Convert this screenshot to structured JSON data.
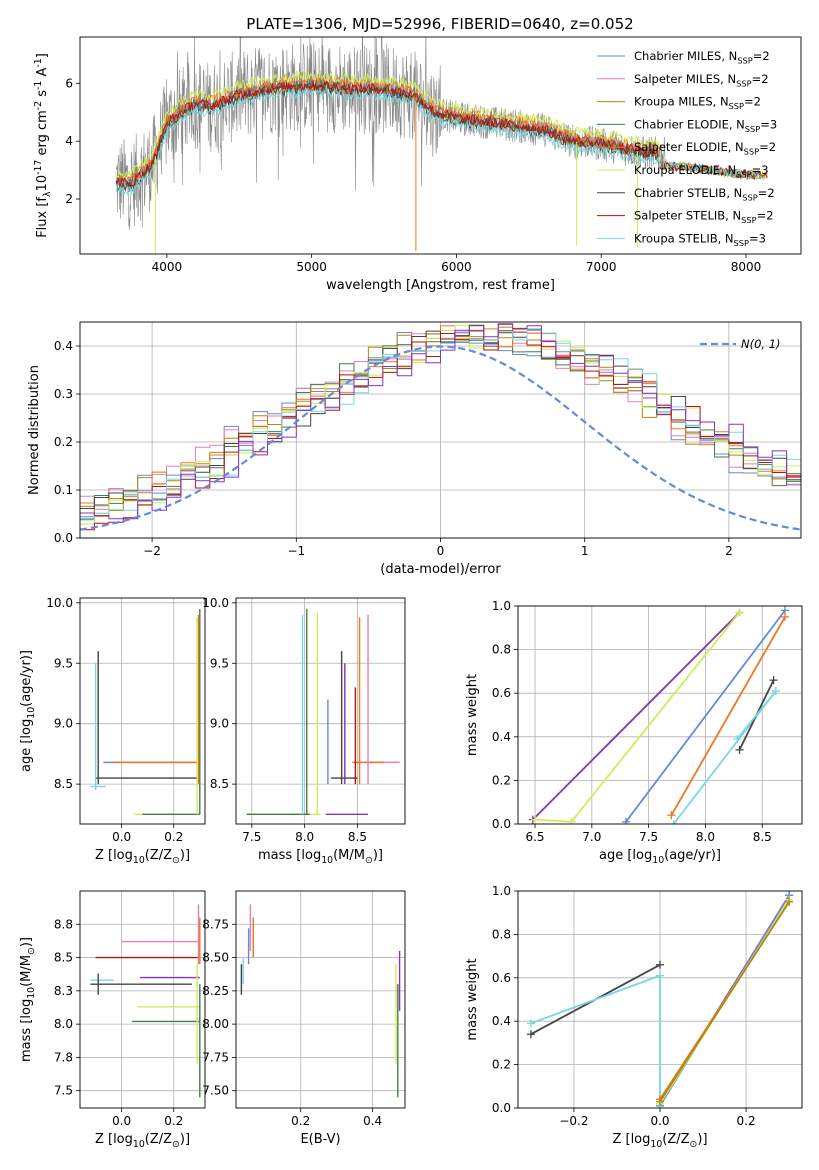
{
  "title": "PLATE=1306, MJD=52996, FIBERID=0640, z=0.052",
  "colors": {
    "Chabrier MILES": "#6688dd",
    "Salpeter MILES": "#e47fbb",
    "Kroupa MILES": "#b8860b",
    "Chabrier ELODIE": "#4a7a4a",
    "Salpeter ELODIE": "#ee7722",
    "Kroupa ELODIE": "#ccee55",
    "Chabrier STELIB": "#444444",
    "Salpeter STELIB": "#bb1111",
    "Kroupa STELIB": "#77d8e0",
    "data": "#888888",
    "extra_purple": "#8833bb",
    "normal": "#6688dd"
  },
  "legend_entries": [
    "Chabrier MILES, N$_{SSP}$=2",
    "Salpeter MILES, N$_{SSP}$=2",
    "Kroupa MILES, N$_{SSP}$=2",
    "Chabrier ELODIE, N$_{SSP}$=3",
    "Salpeter ELODIE, N$_{SSP}$=2",
    "Kroupa ELODIE, N$_{SSP}$=3",
    "Chabrier STELIB, N$_{SSP}$=2",
    "Salpeter STELIB, N$_{SSP}$=2",
    "Kroupa STELIB, N$_{SSP}$=3"
  ],
  "chart_data": [
    {
      "id": "spectrum",
      "type": "line",
      "xlabel": "wavelength [Angstrom, rest frame]",
      "ylabel": "Flux [f$_\\lambda$10$^{-17}$ erg cm$^{-2}$ s$^{-1}$ A$^{-1}$]",
      "xlim": [
        3400,
        8380
      ],
      "ylim": [
        0.1,
        7.6
      ],
      "xticks": [
        4000,
        5000,
        6000,
        7000,
        8000
      ],
      "yticks": [
        2,
        4,
        6
      ],
      "grid": false,
      "legend": "top-right",
      "continuum_x": [
        3650,
        3750,
        3900,
        4000,
        4100,
        4200,
        4300,
        4400,
        4500,
        4700,
        4900,
        5100,
        5300,
        5500,
        5700,
        5850,
        6000,
        6300,
        6600,
        6800,
        7000,
        7300,
        7600,
        7900,
        8150
      ],
      "continuum_y": [
        2.6,
        2.5,
        3.2,
        4.6,
        5.0,
        5.3,
        5.2,
        5.4,
        5.6,
        5.8,
        5.9,
        5.9,
        5.8,
        5.8,
        5.6,
        5.0,
        4.8,
        4.6,
        4.4,
        4.0,
        3.9,
        3.6,
        3.5,
        3.3,
        3.2
      ]
    },
    {
      "id": "residuals",
      "type": "line",
      "xlabel": "(data-model)/error",
      "ylabel": "Normed distribution",
      "xlim": [
        -2.5,
        2.5
      ],
      "ylim": [
        0,
        0.45
      ],
      "xticks": [
        -2,
        -1,
        0,
        1,
        2
      ],
      "yticks": [
        0.0,
        0.1,
        0.2,
        0.3,
        0.4
      ],
      "grid": true,
      "legend": "top-right",
      "legend_label": "$\\mathcal{N}(0,1)$"
    },
    {
      "id": "age-Z",
      "type": "scatter",
      "xlabel": "Z [log$_{10}$($Z/Z_\\odot$)]",
      "ylabel": "age  [log$_{10}$($age/yr$)]",
      "xlim": [
        -0.16,
        0.32
      ],
      "ylim": [
        8.17,
        10.04
      ],
      "xticks": [
        0.0,
        0.2
      ],
      "yticks": [
        8.5,
        9.0,
        9.5,
        10.0
      ],
      "grid": true,
      "hsegs": [
        {
          "model": "Chabrier STELIB",
          "x": [
            -0.1,
            0.3
          ],
          "y": 8.55
        },
        {
          "model": "Kroupa STELIB",
          "x": [
            -0.12,
            -0.06
          ],
          "y": 8.48
        },
        {
          "model": "Chabrier MILES",
          "x": [
            -0.07,
            0.3
          ],
          "y": 8.68
        },
        {
          "model": "Salpeter ELODIE",
          "x": [
            -0.03,
            0.3
          ],
          "y": 8.68
        },
        {
          "model": "Kroupa ELODIE",
          "x": [
            0.05,
            0.3
          ],
          "y": 8.25
        },
        {
          "model": "Chabrier ELODIE",
          "x": [
            0.08,
            0.3
          ],
          "y": 8.25
        }
      ],
      "vsegs": [
        {
          "model": "Chabrier STELIB",
          "x": -0.09,
          "y": [
            8.5,
            9.6
          ]
        },
        {
          "model": "Kroupa STELIB",
          "x": -0.1,
          "y": [
            8.45,
            9.5
          ]
        },
        {
          "model": "Chabrier ELODIE",
          "x": 0.3,
          "y": [
            8.25,
            9.95
          ]
        },
        {
          "model": "Salpeter ELODIE",
          "x": 0.295,
          "y": [
            8.5,
            9.9
          ]
        },
        {
          "model": "Kroupa ELODIE",
          "x": 0.29,
          "y": [
            8.25,
            9.88
          ]
        }
      ]
    },
    {
      "id": "age-mass",
      "type": "scatter",
      "xlabel": "mass [log$_{10}$($M/M_\\odot$)]",
      "ylabel": "",
      "xlim": [
        7.35,
        8.95
      ],
      "ylim": [
        8.17,
        10.04
      ],
      "xticks": [
        7.5,
        8.0,
        8.5
      ],
      "yticks": [
        8.5,
        9.0,
        9.5,
        10.0
      ],
      "grid": true,
      "hsegs": [
        {
          "model": "Kroupa ELODIE",
          "x": [
            7.45,
            8.15
          ],
          "y": 8.25
        },
        {
          "model": "Chabrier ELODIE",
          "x": [
            7.45,
            8.05
          ],
          "y": 8.25
        },
        {
          "model": "extra_purple",
          "x": [
            8.2,
            8.6
          ],
          "y": 8.25
        },
        {
          "model": "Chabrier STELIB",
          "x": [
            8.25,
            8.5
          ],
          "y": 8.55
        },
        {
          "model": "Salpeter MILES",
          "x": [
            8.5,
            8.9
          ],
          "y": 8.68
        },
        {
          "model": "Salpeter ELODIE",
          "x": [
            8.45,
            8.75
          ],
          "y": 8.68
        }
      ],
      "vsegs": [
        {
          "model": "Chabrier ELODIE",
          "x": 8.02,
          "y": [
            8.25,
            9.95
          ]
        },
        {
          "model": "Kroupa ELODIE",
          "x": 8.12,
          "y": [
            8.25,
            9.92
          ]
        },
        {
          "model": "Kroupa STELIB",
          "x": 7.98,
          "y": [
            8.25,
            9.9
          ]
        },
        {
          "model": "Chabrier STELIB",
          "x": 8.35,
          "y": [
            8.5,
            9.6
          ]
        },
        {
          "model": "extra_purple",
          "x": 8.38,
          "y": [
            8.5,
            9.5
          ]
        },
        {
          "model": "Salpeter ELODIE",
          "x": 8.52,
          "y": [
            8.5,
            9.88
          ]
        },
        {
          "model": "Salpeter MILES",
          "x": 8.6,
          "y": [
            8.5,
            9.9
          ]
        },
        {
          "model": "Salpeter STELIB",
          "x": 8.48,
          "y": [
            8.5,
            9.3
          ]
        },
        {
          "model": "Chabrier MILES",
          "x": 8.22,
          "y": [
            8.5,
            9.2
          ]
        }
      ]
    },
    {
      "id": "weight-age",
      "type": "line",
      "xlabel": "age  [log$_{10}$($age/yr$)]",
      "ylabel": "mass weight",
      "xlim": [
        6.35,
        8.85
      ],
      "ylim": [
        0,
        1
      ],
      "xticks": [
        6.5,
        7.0,
        7.5,
        8.0,
        8.5
      ],
      "yticks": [
        0.0,
        0.2,
        0.4,
        0.6,
        0.8,
        1.0
      ],
      "grid": true,
      "series": [
        {
          "model": "extra_purple",
          "x": [
            6.48,
            8.3
          ],
          "y": [
            0.02,
            0.97
          ]
        },
        {
          "model": "Kroupa ELODIE",
          "x": [
            6.5,
            6.82,
            8.3
          ],
          "y": [
            0.02,
            0.01,
            0.97
          ]
        },
        {
          "model": "Chabrier MILES",
          "x": [
            7.3,
            8.7
          ],
          "y": [
            0.01,
            0.98
          ]
        },
        {
          "model": "Salpeter ELODIE",
          "x": [
            7.7,
            8.7
          ],
          "y": [
            0.04,
            0.95
          ]
        },
        {
          "model": "Kroupa STELIB",
          "x": [
            7.72,
            8.62
          ],
          "y": [
            0.0,
            0.61
          ]
        },
        {
          "model": "Chabrier STELIB",
          "x": [
            8.3,
            8.6
          ],
          "y": [
            0.34,
            0.66
          ]
        },
        {
          "model": "Kroupa STELIB",
          "x": [
            8.28,
            8.62
          ],
          "y": [
            0.39,
            0.61
          ]
        }
      ]
    },
    {
      "id": "mass-Z",
      "type": "scatter",
      "xlabel": "Z [log$_{10}$($Z/Z_\\odot$)]",
      "ylabel": "mass [log$_{10}$($M/M_\\odot$)]",
      "xlim": [
        -0.16,
        0.32
      ],
      "ylim": [
        7.37,
        9.0
      ],
      "xticks": [
        0.0,
        0.2
      ],
      "yticks": [
        7.5,
        7.75,
        8.0,
        8.25,
        8.5,
        8.75
      ],
      "grid": true,
      "hsegs": [
        {
          "model": "Salpeter MILES",
          "x": [
            0.0,
            0.3
          ],
          "y": 8.62
        },
        {
          "model": "Salpeter STELIB",
          "x": [
            -0.1,
            0.3
          ],
          "y": 8.5
        },
        {
          "model": "extra_purple",
          "x": [
            0.07,
            0.3
          ],
          "y": 8.35
        },
        {
          "model": "Kroupa STELIB",
          "x": [
            -0.12,
            -0.03
          ],
          "y": 8.33
        },
        {
          "model": "Chabrier STELIB",
          "x": [
            -0.12,
            0.27
          ],
          "y": 8.3
        },
        {
          "model": "Kroupa ELODIE",
          "x": [
            0.06,
            0.3
          ],
          "y": 8.13
        },
        {
          "model": "Chabrier ELODIE",
          "x": [
            0.04,
            0.3
          ],
          "y": 8.02
        }
      ],
      "vsegs": [
        {
          "model": "Chabrier STELIB",
          "x": -0.09,
          "y": [
            8.22,
            8.38
          ]
        },
        {
          "model": "Salpeter MILES",
          "x": 0.295,
          "y": [
            8.45,
            8.9
          ]
        },
        {
          "model": "Salpeter ELODIE",
          "x": 0.3,
          "y": [
            8.45,
            8.8
          ]
        },
        {
          "model": "Kroupa ELODIE",
          "x": 0.29,
          "y": [
            7.7,
            8.45
          ]
        },
        {
          "model": "Chabrier ELODIE",
          "x": 0.3,
          "y": [
            7.45,
            8.3
          ]
        }
      ]
    },
    {
      "id": "mass-EBV",
      "type": "scatter",
      "xlabel": "E(B-V)",
      "ylabel": "",
      "xlim": [
        0.02,
        0.49
      ],
      "ylim": [
        7.37,
        9.0
      ],
      "xticks": [
        0.2,
        0.4
      ],
      "yticks": [
        7.5,
        7.75,
        8.0,
        8.25,
        8.5,
        8.75
      ],
      "grid": true,
      "vsegs": [
        {
          "model": "Chabrier STELIB",
          "x": 0.035,
          "y": [
            8.22,
            8.45
          ]
        },
        {
          "model": "Kroupa STELIB",
          "x": 0.04,
          "y": [
            8.3,
            8.5
          ]
        },
        {
          "model": "Chabrier MILES",
          "x": 0.055,
          "y": [
            8.45,
            8.72
          ]
        },
        {
          "model": "Salpeter MILES",
          "x": 0.06,
          "y": [
            8.55,
            8.9
          ]
        },
        {
          "model": "Salpeter ELODIE",
          "x": 0.068,
          "y": [
            8.5,
            8.8
          ]
        },
        {
          "model": "extra_purple",
          "x": 0.475,
          "y": [
            8.1,
            8.55
          ]
        },
        {
          "model": "Kroupa ELODIE",
          "x": 0.465,
          "y": [
            7.7,
            8.45
          ]
        },
        {
          "model": "Chabrier ELODIE",
          "x": 0.47,
          "y": [
            7.45,
            8.3
          ]
        }
      ]
    },
    {
      "id": "weight-Z",
      "type": "line",
      "xlabel": "Z [log$_{10}$($Z/Z_\\odot$)]",
      "ylabel": "mass weight",
      "xlim": [
        -0.33,
        0.33
      ],
      "ylim": [
        0,
        1
      ],
      "xticks": [
        -0.2,
        0.0,
        0.2
      ],
      "yticks": [
        0.0,
        0.2,
        0.4,
        0.6,
        0.8,
        1.0
      ],
      "grid": true,
      "series": [
        {
          "model": "Chabrier STELIB",
          "x": [
            -0.3,
            0.0
          ],
          "y": [
            0.34,
            0.66
          ]
        },
        {
          "model": "Kroupa STELIB",
          "x": [
            -0.3,
            0.0
          ],
          "y": [
            0.39,
            0.61
          ]
        },
        {
          "model": "Kroupa STELIB",
          "x": [
            0.0,
            0.0
          ],
          "y": [
            0.61,
            0.0
          ]
        },
        {
          "model": "extra_purple",
          "x": [
            0.0,
            0.3
          ],
          "y": [
            0.02,
            0.98
          ]
        },
        {
          "model": "Chabrier MILES",
          "x": [
            0.0,
            0.3
          ],
          "y": [
            0.01,
            0.98
          ]
        },
        {
          "model": "Salpeter ELODIE",
          "x": [
            0.0,
            0.3
          ],
          "y": [
            0.04,
            0.95
          ]
        },
        {
          "model": "Kroupa ELODIE",
          "x": [
            0.0,
            0.3
          ],
          "y": [
            0.02,
            0.96
          ]
        },
        {
          "model": "Kroupa MILES",
          "x": [
            0.0,
            0.3
          ],
          "y": [
            0.03,
            0.95
          ]
        }
      ]
    }
  ]
}
